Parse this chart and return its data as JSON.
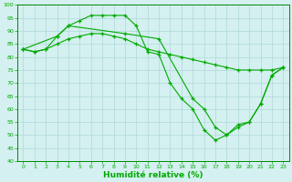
{
  "xlabel": "Humidité relative (%)",
  "background_color": "#d4f0f0",
  "grid_color": "#b0d8d8",
  "line_color": "#00aa00",
  "ylim": [
    40,
    100
  ],
  "yticks": [
    40,
    45,
    50,
    55,
    60,
    65,
    70,
    75,
    80,
    85,
    90,
    95,
    100
  ],
  "xlim": [
    -0.5,
    23.5
  ],
  "s1_x": [
    0,
    1,
    2,
    3,
    4,
    5,
    6,
    7,
    8,
    9,
    10,
    11,
    12,
    13,
    14,
    15,
    16,
    17,
    18,
    19,
    20,
    21,
    22,
    23
  ],
  "s1_y": [
    83,
    82,
    83,
    88,
    92,
    94,
    96,
    96,
    96,
    96,
    92,
    82,
    81,
    70,
    64,
    60,
    52,
    48,
    50,
    54,
    55,
    62,
    73,
    76
  ],
  "s2_x": [
    0,
    1,
    2,
    3,
    4,
    5,
    6,
    7,
    8,
    9,
    10,
    11,
    12,
    13,
    14,
    15,
    16,
    17,
    18,
    19,
    20,
    21,
    22,
    23
  ],
  "s2_y": [
    83,
    82,
    83,
    85,
    87,
    88,
    89,
    89,
    88,
    87,
    85,
    83,
    82,
    81,
    80,
    79,
    78,
    77,
    76,
    75,
    75,
    75,
    75,
    76
  ],
  "s3_x": [
    0,
    3,
    4,
    9,
    12,
    15,
    16,
    17,
    18,
    19,
    20,
    21,
    22,
    23
  ],
  "s3_y": [
    83,
    88,
    92,
    89,
    87,
    64,
    60,
    53,
    50,
    53,
    55,
    62,
    73,
    76
  ]
}
